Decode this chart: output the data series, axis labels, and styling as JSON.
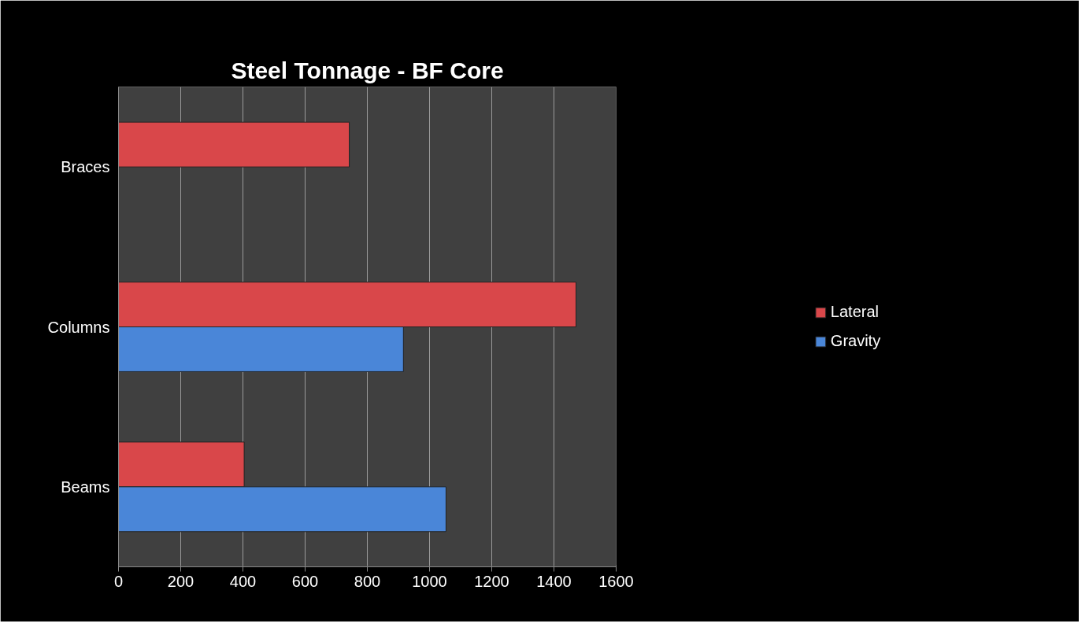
{
  "chart_data": {
    "type": "bar",
    "orientation": "horizontal",
    "title": "Steel Tonnage - BF Core",
    "categories": [
      "Braces",
      "Columns",
      "Beams"
    ],
    "series": [
      {
        "name": "Lateral",
        "color": "#d9474a",
        "values": [
          742,
          1471,
          404
        ]
      },
      {
        "name": "Gravity",
        "color": "#4a86d8",
        "values": [
          null,
          916,
          1053
        ]
      }
    ],
    "xlim": [
      0,
      1600
    ],
    "xticks": [
      0,
      200,
      400,
      600,
      800,
      1000,
      1200,
      1400,
      1600
    ],
    "grid": "x",
    "legend": "right"
  }
}
